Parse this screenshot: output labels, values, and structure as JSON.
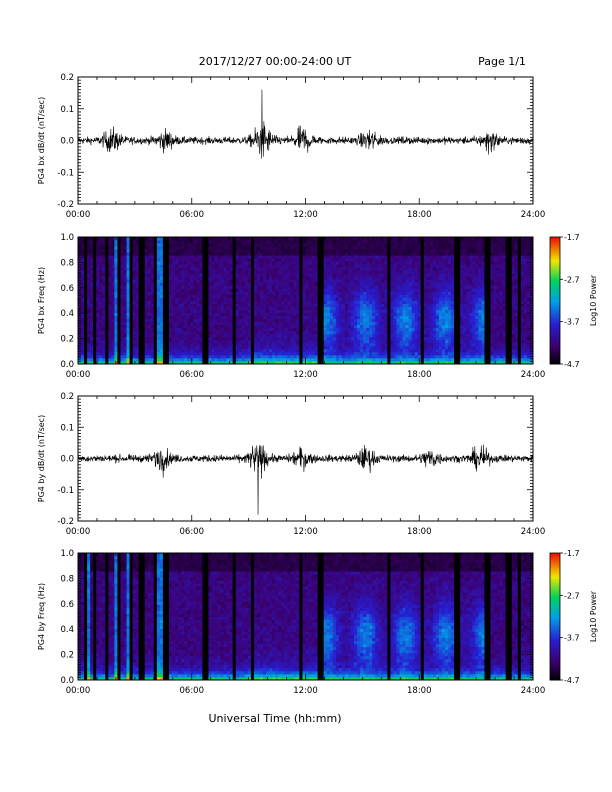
{
  "header": {
    "title": "2017/12/27  00:00-24:00 UT",
    "page": "Page 1/1"
  },
  "footer": {
    "xlabel": "Universal Time (hh:mm)"
  },
  "chart_data": [
    {
      "type": "line",
      "ylabel": "PG4 bx dB/dt (nT/sec)",
      "xlim": [
        0,
        24
      ],
      "ylim": [
        -0.2,
        0.2
      ],
      "x_ticks": [
        "00:00",
        "06:00",
        "12:00",
        "18:00",
        "24:00"
      ],
      "y_ticks": [
        "-0.2",
        "-0.1",
        "0.0",
        "0.1",
        "0.2"
      ],
      "line_color": "#000000",
      "activity_bursts": [
        {
          "hour": 1.8,
          "amplitude": 0.06
        },
        {
          "hour": 4.6,
          "amplitude": 0.05
        },
        {
          "hour": 9.7,
          "amplitude": 0.1,
          "peak": 0.16
        },
        {
          "hour": 11.9,
          "amplitude": 0.07
        },
        {
          "hour": 15.4,
          "amplitude": 0.05
        },
        {
          "hour": 21.7,
          "amplitude": 0.05
        }
      ]
    },
    {
      "type": "heatmap",
      "ylabel": "PG4 bx Freq (Hz)",
      "xlim": [
        0,
        24
      ],
      "ylim": [
        0.0,
        1.0
      ],
      "x_ticks": [
        "00:00",
        "06:00",
        "12:00",
        "18:00",
        "24:00"
      ],
      "y_ticks": [
        "0.0",
        "0.2",
        "0.4",
        "0.6",
        "0.8",
        "1.0"
      ],
      "colorbar": {
        "label": "Log10 Power",
        "min": -4.7,
        "max": -1.7,
        "ticks": [
          "-1.7",
          "-2.7",
          "-3.7",
          "-4.7"
        ]
      },
      "data_gaps_hours": [
        0.45,
        0.9,
        1.55,
        2.2,
        2.75,
        3.35,
        4.1,
        4.65,
        6.7,
        8.25,
        9.2,
        11.8,
        12.8,
        16.4,
        18.2,
        20.0,
        21.6,
        22.7,
        23.3
      ],
      "spike_hours": [
        0.45,
        2.0,
        2.65,
        4.1,
        4.3
      ]
    },
    {
      "type": "line",
      "ylabel": "PG4 by dB/dt (nT/sec)",
      "xlim": [
        0,
        24
      ],
      "ylim": [
        -0.2,
        0.2
      ],
      "x_ticks": [
        "00:00",
        "06:00",
        "12:00",
        "18:00",
        "24:00"
      ],
      "y_ticks": [
        "-0.2",
        "-0.1",
        "0.0",
        "0.1",
        "0.2"
      ],
      "line_color": "#000000",
      "activity_bursts": [
        {
          "hour": 4.4,
          "amplitude": 0.06
        },
        {
          "hour": 9.5,
          "amplitude": 0.09,
          "peak": 0.2
        },
        {
          "hour": 11.8,
          "amplitude": 0.05
        },
        {
          "hour": 15.2,
          "amplitude": 0.06
        },
        {
          "hour": 18.6,
          "amplitude": 0.05
        },
        {
          "hour": 21.2,
          "amplitude": 0.06
        }
      ]
    },
    {
      "type": "heatmap",
      "ylabel": "PG4 by Freq (Hz)",
      "xlim": [
        0,
        24
      ],
      "ylim": [
        0.0,
        1.0
      ],
      "x_ticks": [
        "00:00",
        "06:00",
        "12:00",
        "18:00",
        "24:00"
      ],
      "y_ticks": [
        "0.0",
        "0.2",
        "0.4",
        "0.6",
        "0.8",
        "1.0"
      ],
      "colorbar": {
        "label": "Log10 Power",
        "min": -4.7,
        "max": -1.7,
        "ticks": [
          "-1.7",
          "-2.7",
          "-3.7",
          "-4.7"
        ]
      },
      "data_gaps_hours": [
        0.45,
        0.9,
        1.55,
        2.2,
        2.75,
        3.35,
        4.1,
        4.65,
        6.7,
        8.25,
        9.2,
        11.8,
        12.8,
        16.4,
        18.2,
        20.0,
        21.6,
        22.7,
        23.3
      ],
      "spike_hours": [
        0.5,
        2.0,
        2.6,
        4.1,
        4.3
      ]
    }
  ]
}
